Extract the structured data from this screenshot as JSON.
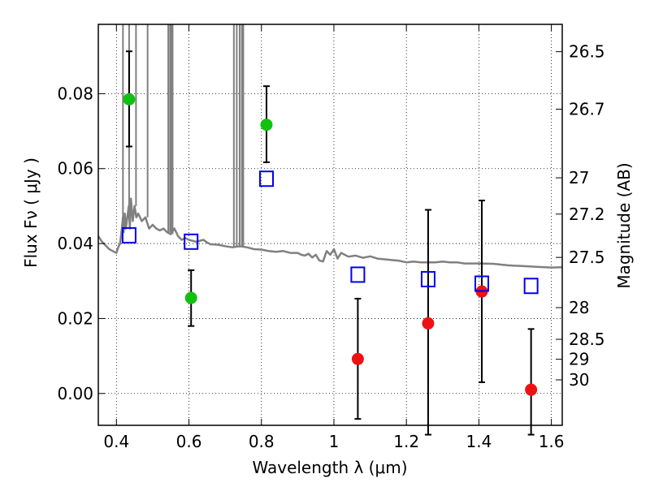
{
  "chart_data": {
    "type": "scatter",
    "xlabel": "Wavelength  λ (μm)",
    "ylabel": "Flux  Fν  ( μJy )",
    "ylabel_right": "Magnitude (AB)",
    "xlim": [
      0.35,
      1.63
    ],
    "ylim": [
      -0.0085,
      0.0985
    ],
    "grid": true,
    "x_ticks": [
      {
        "value": 0.4,
        "label": "0.4"
      },
      {
        "value": 0.6,
        "label": "0.6"
      },
      {
        "value": 0.8,
        "label": "0.8"
      },
      {
        "value": 1.0,
        "label": "1"
      },
      {
        "value": 1.2,
        "label": "1.2"
      },
      {
        "value": 1.4,
        "label": "1.4"
      },
      {
        "value": 1.6,
        "label": "1.6"
      }
    ],
    "y_ticks": [
      {
        "value": 0.0,
        "label": "0.00"
      },
      {
        "value": 0.02,
        "label": "0.02"
      },
      {
        "value": 0.04,
        "label": "0.04"
      },
      {
        "value": 0.06,
        "label": "0.06"
      },
      {
        "value": 0.08,
        "label": "0.08"
      }
    ],
    "mag_ticks": [
      {
        "mag": 26.5,
        "label": "26.5"
      },
      {
        "mag": 26.7,
        "label": "26.7"
      },
      {
        "mag": 27.0,
        "label": "27"
      },
      {
        "mag": 27.2,
        "label": "27.2"
      },
      {
        "mag": 27.5,
        "label": "27.5"
      },
      {
        "mag": 28.0,
        "label": "28"
      },
      {
        "mag": 28.5,
        "label": "28.5"
      },
      {
        "mag": 29.0,
        "label": "29"
      },
      {
        "mag": 30.0,
        "label": "30"
      }
    ],
    "series": [
      {
        "marker": "filled-circle",
        "color": "#11c011",
        "points": [
          {
            "x": 0.435,
            "y": 0.0785,
            "yerr_low": 0.0659,
            "yerr_high": 0.0913
          },
          {
            "x": 0.606,
            "y": 0.0255,
            "yerr_low": 0.018,
            "yerr_high": 0.0329
          },
          {
            "x": 0.814,
            "y": 0.0717,
            "yerr_low": 0.0617,
            "yerr_high": 0.082
          }
        ]
      },
      {
        "marker": "filled-circle",
        "color": "#ee1111",
        "points": [
          {
            "x": 1.066,
            "y": 0.0092,
            "yerr_low": -0.0068,
            "yerr_high": 0.0253
          },
          {
            "x": 1.26,
            "y": 0.0187,
            "yerr_low": -0.011,
            "yerr_high": 0.049
          },
          {
            "x": 1.408,
            "y": 0.0272,
            "yerr_low": 0.003,
            "yerr_high": 0.0515
          },
          {
            "x": 1.544,
            "y": 0.001,
            "yerr_low": -0.011,
            "yerr_high": 0.0172
          }
        ]
      },
      {
        "marker": "open-square",
        "color": "#0000ee",
        "points": [
          {
            "x": 0.435,
            "y": 0.0422
          },
          {
            "x": 0.606,
            "y": 0.0405
          },
          {
            "x": 0.814,
            "y": 0.0573
          },
          {
            "x": 1.066,
            "y": 0.0317
          },
          {
            "x": 1.26,
            "y": 0.0305
          },
          {
            "x": 1.408,
            "y": 0.0293
          },
          {
            "x": 1.544,
            "y": 0.0287
          }
        ]
      }
    ],
    "model_sed": {
      "color": "#808080",
      "points": [
        [
          0.35,
          0.042
        ],
        [
          0.36,
          0.0405
        ],
        [
          0.37,
          0.0395
        ],
        [
          0.38,
          0.0385
        ],
        [
          0.39,
          0.038
        ],
        [
          0.4,
          0.0375
        ],
        [
          0.405,
          0.039
        ],
        [
          0.41,
          0.04
        ],
        [
          0.415,
          0.044
        ],
        [
          0.418,
          0.047
        ],
        [
          0.42,
          0.043
        ],
        [
          0.423,
          0.048
        ],
        [
          0.426,
          0.044
        ],
        [
          0.43,
          0.047
        ],
        [
          0.434,
          0.05
        ],
        [
          0.437,
          0.044
        ],
        [
          0.44,
          0.052
        ],
        [
          0.445,
          0.046
        ],
        [
          0.45,
          0.05
        ],
        [
          0.455,
          0.047
        ],
        [
          0.46,
          0.048
        ],
        [
          0.47,
          0.046
        ],
        [
          0.48,
          0.047
        ],
        [
          0.49,
          0.044
        ],
        [
          0.5,
          0.045
        ],
        [
          0.51,
          0.044
        ],
        [
          0.52,
          0.0435
        ],
        [
          0.53,
          0.044
        ],
        [
          0.54,
          0.043
        ],
        [
          0.55,
          0.0425
        ],
        [
          0.56,
          0.044
        ],
        [
          0.57,
          0.042
        ],
        [
          0.58,
          0.041
        ],
        [
          0.59,
          0.0415
        ],
        [
          0.6,
          0.041
        ],
        [
          0.62,
          0.0405
        ],
        [
          0.64,
          0.041
        ],
        [
          0.65,
          0.0403
        ],
        [
          0.66,
          0.0398
        ],
        [
          0.68,
          0.0397
        ],
        [
          0.7,
          0.0393
        ],
        [
          0.72,
          0.039
        ],
        [
          0.74,
          0.0393
        ],
        [
          0.76,
          0.039
        ],
        [
          0.78,
          0.0385
        ],
        [
          0.8,
          0.0384
        ],
        [
          0.82,
          0.038
        ],
        [
          0.84,
          0.0378
        ],
        [
          0.86,
          0.038
        ],
        [
          0.88,
          0.0375
        ],
        [
          0.9,
          0.0375
        ],
        [
          0.91,
          0.037
        ],
        [
          0.92,
          0.0368
        ],
        [
          0.93,
          0.0373
        ],
        [
          0.94,
          0.0363
        ],
        [
          0.95,
          0.037
        ],
        [
          0.96,
          0.0355
        ],
        [
          0.97,
          0.0352
        ],
        [
          0.98,
          0.038
        ],
        [
          0.99,
          0.037
        ],
        [
          1.0,
          0.0385
        ],
        [
          1.01,
          0.036
        ],
        [
          1.02,
          0.0375
        ],
        [
          1.04,
          0.0365
        ],
        [
          1.06,
          0.0368
        ],
        [
          1.08,
          0.0362
        ],
        [
          1.1,
          0.0366
        ],
        [
          1.12,
          0.036
        ],
        [
          1.14,
          0.0358
        ],
        [
          1.16,
          0.0356
        ],
        [
          1.18,
          0.0354
        ],
        [
          1.2,
          0.035
        ],
        [
          1.22,
          0.0352
        ],
        [
          1.24,
          0.035
        ],
        [
          1.26,
          0.035
        ],
        [
          1.28,
          0.035
        ],
        [
          1.3,
          0.0352
        ],
        [
          1.32,
          0.035
        ],
        [
          1.34,
          0.035
        ],
        [
          1.36,
          0.0347
        ],
        [
          1.4,
          0.0347
        ],
        [
          1.44,
          0.0346
        ],
        [
          1.48,
          0.0342
        ],
        [
          1.52,
          0.034
        ],
        [
          1.56,
          0.0338
        ],
        [
          1.6,
          0.0336
        ],
        [
          1.63,
          0.0337
        ]
      ],
      "emission_lines": [
        0.418,
        0.435,
        0.454,
        0.486,
        0.543,
        0.548,
        0.551,
        0.555,
        0.724,
        0.732,
        0.74,
        0.746,
        0.75
      ]
    }
  }
}
